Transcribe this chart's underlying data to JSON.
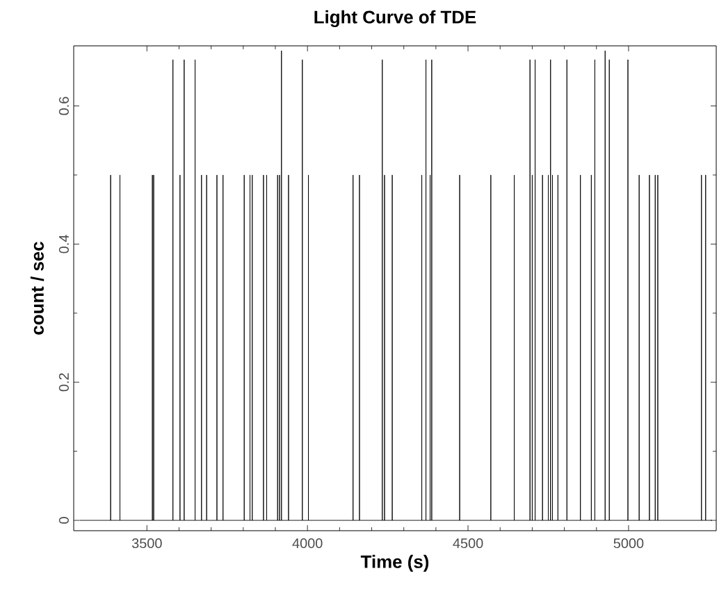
{
  "chart_data": {
    "type": "line",
    "title": "Light Curve of TDE",
    "xlabel": "Time (s)",
    "ylabel": "count / sec",
    "xlim": [
      3272,
      5273
    ],
    "ylim": [
      -0.015,
      0.687
    ],
    "xticks": [
      3500,
      4000,
      4500,
      5000
    ],
    "yticks": [
      0,
      0.2,
      0.4,
      0.6
    ],
    "marker": "none",
    "series": [
      {
        "color": "#000000",
        "x": [
          3290,
          3387,
          3387,
          3387,
          3416,
          3416,
          3416,
          3517,
          3517,
          3517,
          3521,
          3521,
          3521,
          3581,
          3581,
          3581,
          3603,
          3603,
          3603,
          3616,
          3616,
          3616,
          3650,
          3650,
          3650,
          3670,
          3670,
          3670,
          3686,
          3686,
          3686,
          3718,
          3718,
          3718,
          3737,
          3737,
          3737,
          3803,
          3803,
          3803,
          3821,
          3821,
          3821,
          3828,
          3828,
          3828,
          3863,
          3863,
          3863,
          3873,
          3873,
          3873,
          3907,
          3907,
          3907,
          3913,
          3913,
          3913,
          3919,
          3919,
          3919,
          3941,
          3941,
          3941,
          3984,
          3984,
          3984,
          4003,
          4003,
          4003,
          4142,
          4142,
          4142,
          4162,
          4162,
          4162,
          4233,
          4233,
          4233,
          4240,
          4240,
          4240,
          4264,
          4264,
          4264,
          4356,
          4356,
          4356,
          4369,
          4369,
          4369,
          4382,
          4382,
          4382,
          4387,
          4387,
          4387,
          4474,
          4474,
          4474,
          4571,
          4571,
          4571,
          4644,
          4644,
          4644,
          4693,
          4693,
          4693,
          4700,
          4700,
          4700,
          4709,
          4709,
          4709,
          4732,
          4732,
          4732,
          4750,
          4750,
          4750,
          4757,
          4757,
          4757,
          4763,
          4763,
          4763,
          4780,
          4780,
          4780,
          4808,
          4808,
          4808,
          4850,
          4850,
          4850,
          4884,
          4884,
          4884,
          4895,
          4895,
          4895,
          4927,
          4927,
          4927,
          4940,
          4940,
          4940,
          4998,
          4998,
          4998,
          5033,
          5033,
          5033,
          5065,
          5065,
          5065,
          5083,
          5083,
          5083,
          5091,
          5091,
          5091,
          5227,
          5227,
          5227,
          5240,
          5240,
          5240,
          5260
        ],
        "values": [
          0,
          0,
          0.5,
          0,
          0,
          0.5,
          0,
          0,
          0.5,
          0,
          0,
          0.5,
          0,
          0,
          0.667,
          0,
          0,
          0.5,
          0,
          0,
          0.667,
          0,
          0,
          0.667,
          0,
          0,
          0.5,
          0,
          0,
          0.5,
          0,
          0,
          0.5,
          0,
          0,
          0.5,
          0,
          0,
          0.5,
          0,
          0,
          0.5,
          0,
          0,
          0.5,
          0,
          0,
          0.5,
          0,
          0,
          0.5,
          0,
          0,
          0.5,
          0,
          0,
          0.5,
          0,
          0,
          0.68,
          0,
          0,
          0.5,
          0,
          0,
          0.667,
          0,
          0,
          0.5,
          0,
          0,
          0.5,
          0,
          0,
          0.5,
          0,
          0,
          0.667,
          0,
          0,
          0.5,
          0,
          0,
          0.5,
          0,
          0,
          0.5,
          0,
          0,
          0.667,
          0,
          0,
          0.5,
          0,
          0,
          0.667,
          0,
          0,
          0.5,
          0,
          0,
          0.5,
          0,
          0,
          0.5,
          0,
          0,
          0.667,
          0,
          0,
          0.5,
          0,
          0,
          0.667,
          0,
          0,
          0.5,
          0,
          0,
          0.5,
          0,
          0,
          0.667,
          0,
          0,
          0.5,
          0,
          0,
          0.5,
          0,
          0,
          0.667,
          0,
          0,
          0.5,
          0,
          0,
          0.5,
          0,
          0,
          0.667,
          0,
          0,
          0.68,
          0,
          0,
          0.667,
          0,
          0,
          0.667,
          0,
          0,
          0.5,
          0,
          0,
          0.5,
          0,
          0,
          0.5,
          0,
          0,
          0.5,
          0,
          0,
          0.5,
          0,
          0,
          0.5,
          0,
          0
        ]
      }
    ]
  }
}
